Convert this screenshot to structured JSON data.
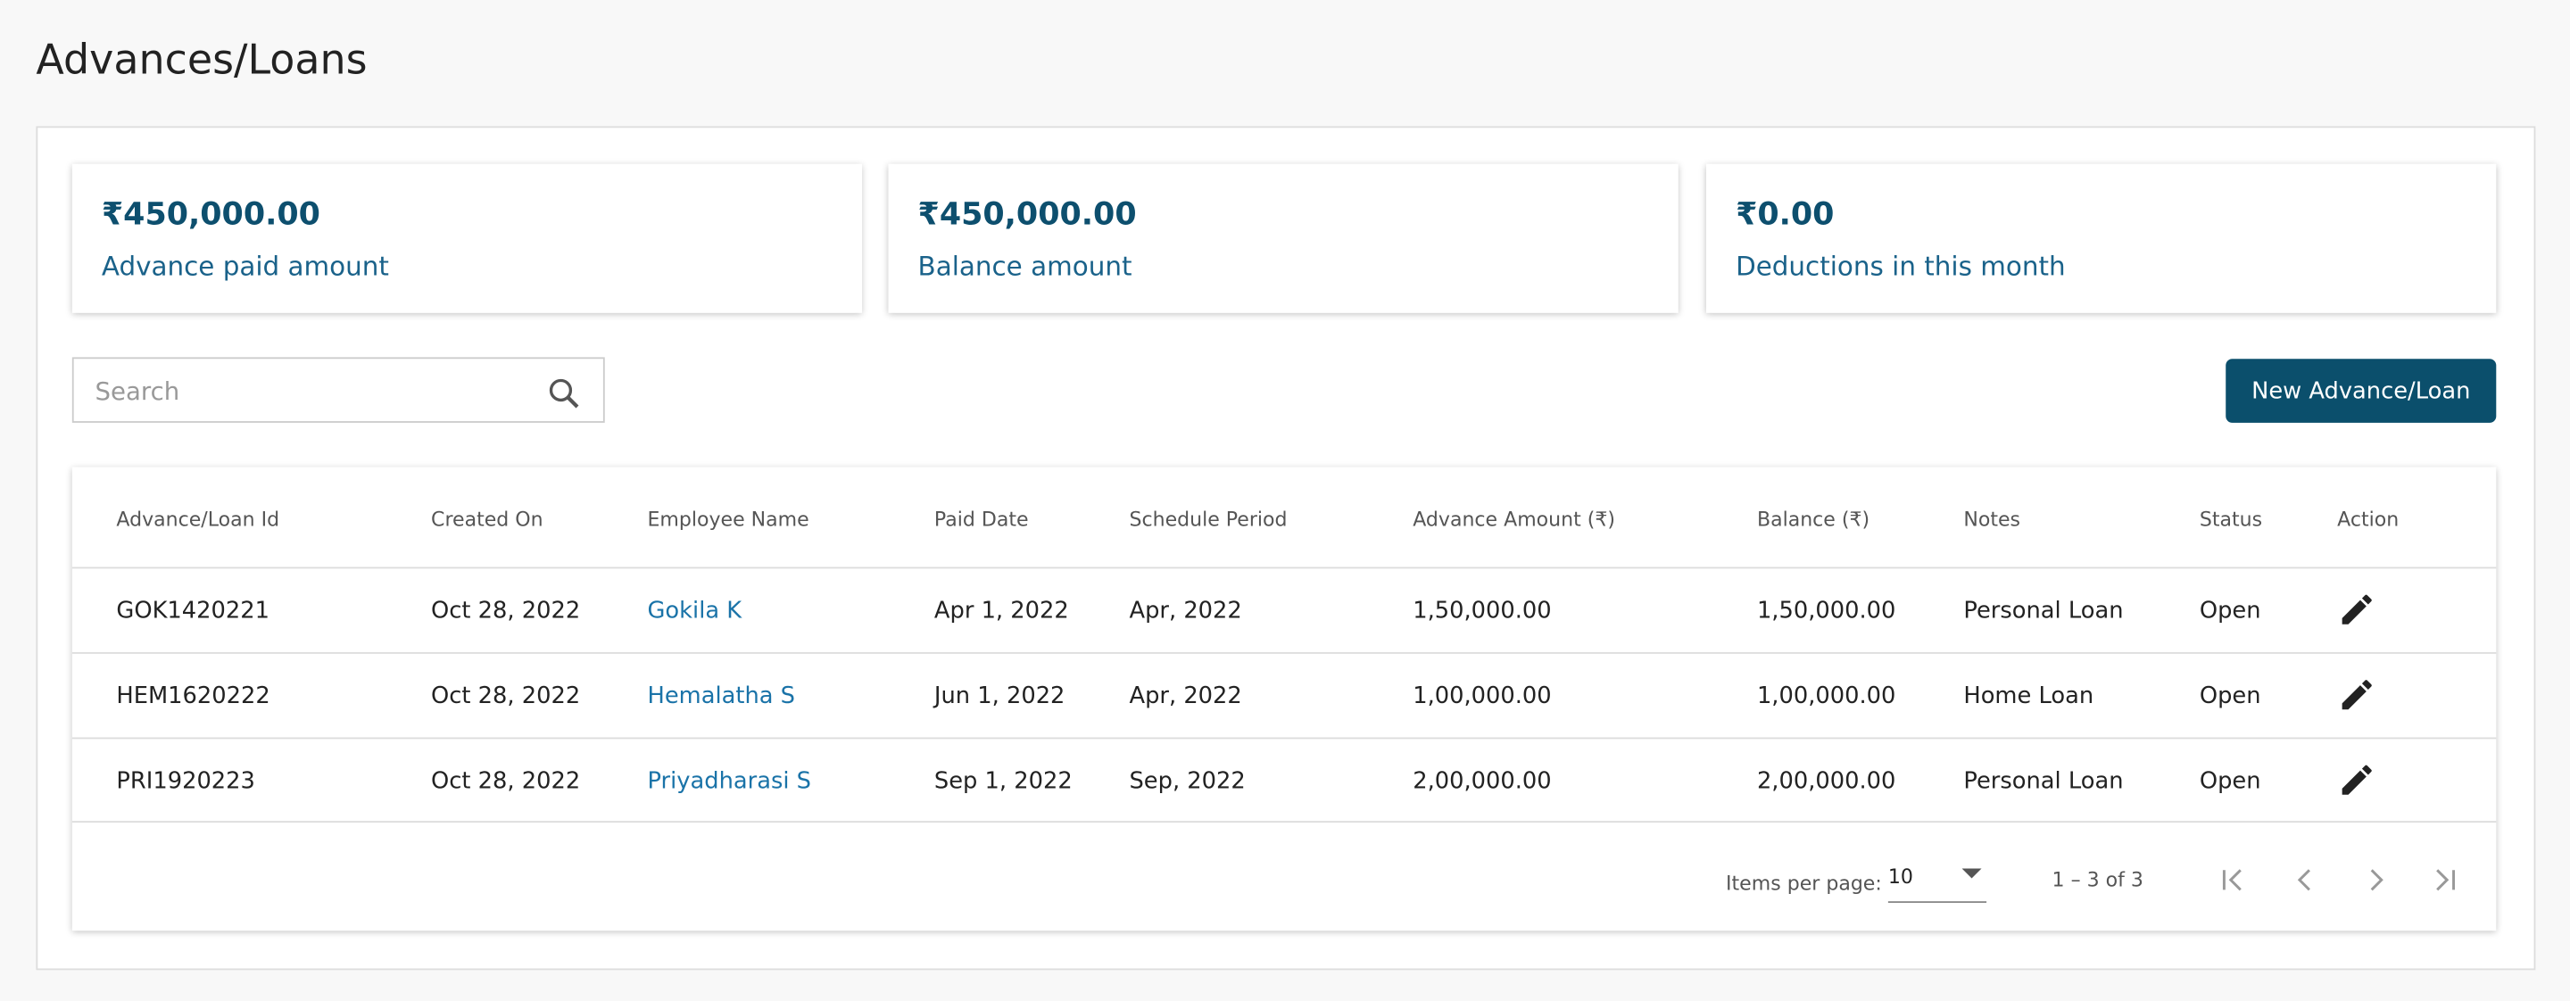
{
  "header": {
    "title": "Advances/Loans"
  },
  "summary": [
    {
      "value": "₹450,000.00",
      "label": "Advance paid amount"
    },
    {
      "value": "₹450,000.00",
      "label": "Balance amount"
    },
    {
      "value": "₹0.00",
      "label": "Deductions in this month"
    }
  ],
  "toolbar": {
    "search_placeholder": "Search",
    "button": "New Advance/Loan"
  },
  "table": {
    "headers": [
      "Advance/Loan Id",
      "Created On",
      "Employee Name",
      "Paid Date",
      "Schedule Period",
      "Advance Amount (₹)",
      "Balance (₹)",
      "Notes",
      "Status",
      "Action"
    ],
    "rows": [
      [
        "GOK1420221",
        "Oct 28, 2022",
        "Gokila K",
        "Apr 1, 2022",
        "Apr, 2022",
        "1,50,000.00",
        "1,50,000.00",
        "Personal Loan",
        "Open"
      ],
      [
        "HEM1620222",
        "Oct 28, 2022",
        "Hemalatha S",
        "Jun 1, 2022",
        "Apr, 2022",
        "1,00,000.00",
        "1,00,000.00",
        "Home Loan",
        "Open"
      ],
      [
        "PRI1920223",
        "Oct 28, 2022",
        "Priyadharasi S",
        "Sep 1, 2022",
        "Sep, 2022",
        "2,00,000.00",
        "2,00,000.00",
        "Personal Loan",
        "Open"
      ]
    ]
  },
  "paginator": {
    "items_per_page_label": "Items per page:",
    "page_size": "10",
    "range_label": "1 – 3 of 3"
  }
}
